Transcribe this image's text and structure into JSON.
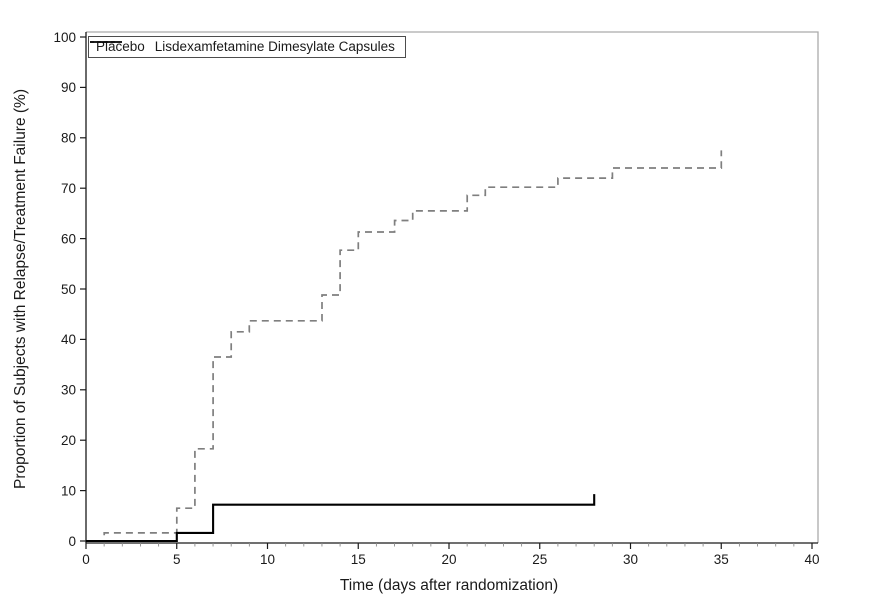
{
  "chart_data": {
    "type": "line",
    "subtype": "step",
    "title": "",
    "xlabel": "Time (days after randomization)",
    "ylabel": "Proportion of Subjects with Relapse/Treatment Failure (%)",
    "xlim": [
      0,
      40
    ],
    "ylim": [
      0,
      100
    ],
    "x_ticks": [
      0,
      5,
      10,
      15,
      20,
      25,
      30,
      35,
      40
    ],
    "x_minor_tick_step": 1,
    "y_ticks": [
      0,
      10,
      20,
      30,
      40,
      50,
      60,
      70,
      80,
      90,
      100
    ],
    "grid": false,
    "legend_position": "top-left-inside",
    "frame_color": "#aaaaaa",
    "axis_color": "#1a1a1a",
    "tick_label_color": "#1a1a1a",
    "series": [
      {
        "name": "Placebo",
        "line_style": "dashed",
        "color": "#7f7f7f",
        "points": [
          [
            0,
            0
          ],
          [
            1,
            0
          ],
          [
            1,
            1.6
          ],
          [
            5,
            1.6
          ],
          [
            5,
            6.5
          ],
          [
            6,
            6.5
          ],
          [
            6,
            18.3
          ],
          [
            7,
            18.3
          ],
          [
            7,
            36.5
          ],
          [
            8,
            36.5
          ],
          [
            8,
            41.5
          ],
          [
            9,
            41.5
          ],
          [
            9,
            43.7
          ],
          [
            13,
            43.7
          ],
          [
            13,
            48.8
          ],
          [
            14,
            48.8
          ],
          [
            14,
            57.7
          ],
          [
            15,
            57.7
          ],
          [
            15,
            61.3
          ],
          [
            17,
            61.3
          ],
          [
            17,
            63.6
          ],
          [
            18,
            63.6
          ],
          [
            18,
            65.5
          ],
          [
            21,
            65.5
          ],
          [
            21,
            68.6
          ],
          [
            22,
            68.6
          ],
          [
            22,
            70.2
          ],
          [
            26,
            70.2
          ],
          [
            26,
            72
          ],
          [
            29,
            72
          ],
          [
            29,
            74
          ],
          [
            35,
            74
          ],
          [
            35,
            77.5
          ]
        ]
      },
      {
        "name": "Lisdexamfetamine Dimesylate Capsules",
        "line_style": "solid",
        "color": "#000000",
        "points": [
          [
            0,
            0
          ],
          [
            5,
            0
          ],
          [
            5,
            1.6
          ],
          [
            7,
            1.6
          ],
          [
            7,
            7.2
          ],
          [
            28,
            7.2
          ],
          [
            28,
            9.3
          ]
        ]
      }
    ]
  }
}
